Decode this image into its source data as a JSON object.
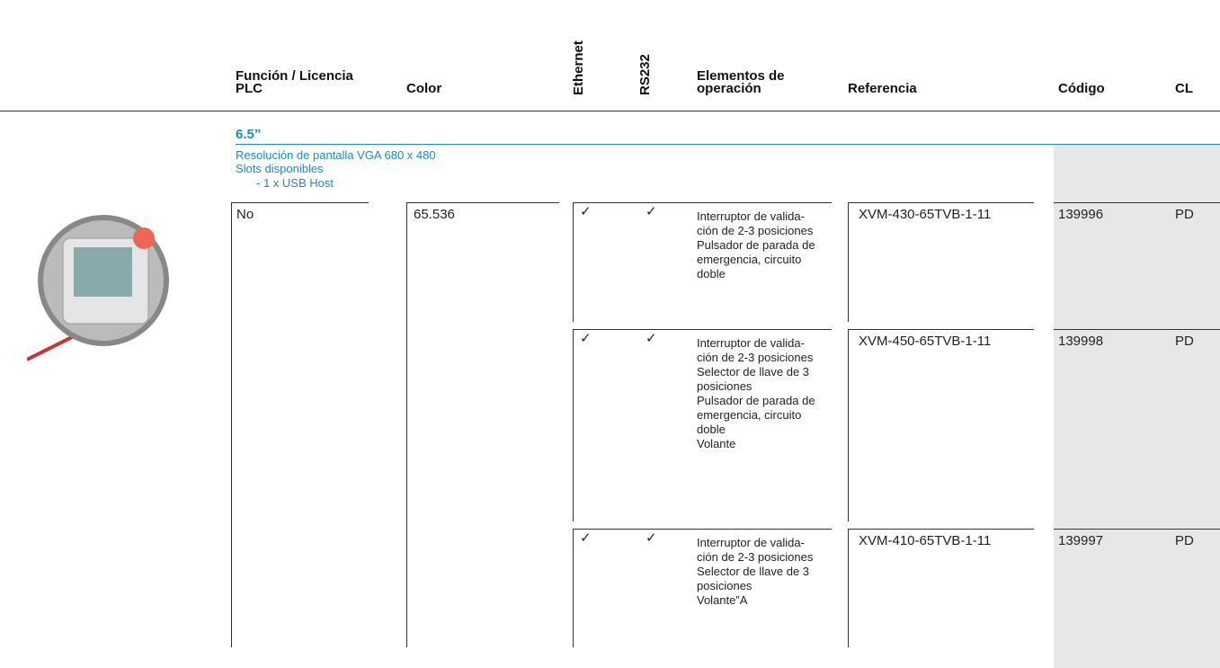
{
  "header": {
    "columns": [
      "Función / Licencia\nPLC",
      "Color",
      "Ethernet",
      "RS232",
      "Elementos de\noperación",
      "Referencia",
      "Código",
      "CL"
    ]
  },
  "section": {
    "title": "6.5”",
    "description": [
      "Resolución de pantalla VGA 680 x 480",
      "Slots disponibles",
      "- 1 x USB Host"
    ]
  },
  "group": {
    "plc": "No",
    "color": "65.536"
  },
  "rows": [
    {
      "ethernet": "✓",
      "rs232": "✓",
      "elements": [
        "Interruptor de valida-",
        "ción de 2-3 posiciones",
        "Pulsador de parada de",
        "emergencia, circuito",
        "doble"
      ],
      "reference": "XVM-430-65TVB-1-11",
      "code": "139996",
      "cl": "PD"
    },
    {
      "ethernet": "✓",
      "rs232": "✓",
      "elements": [
        "Interruptor de valida-",
        "ción de 2-3 posiciones",
        "Selector de llave de 3",
        "posiciones",
        "Pulsador de parada de",
        "emergencia, circuito",
        "doble",
        "Volante"
      ],
      "reference": "XVM-450-65TVB-1-11",
      "code": "139998",
      "cl": "PD"
    },
    {
      "ethernet": "✓",
      "rs232": "✓",
      "elements": [
        "Interruptor de valida-",
        "ción de 2-3 posiciones",
        "Selector de llave de 3",
        "posiciones",
        "Volante”A"
      ],
      "reference": "XVM-410-65TVB-1-11",
      "code": "139997",
      "cl": "PD"
    }
  ]
}
